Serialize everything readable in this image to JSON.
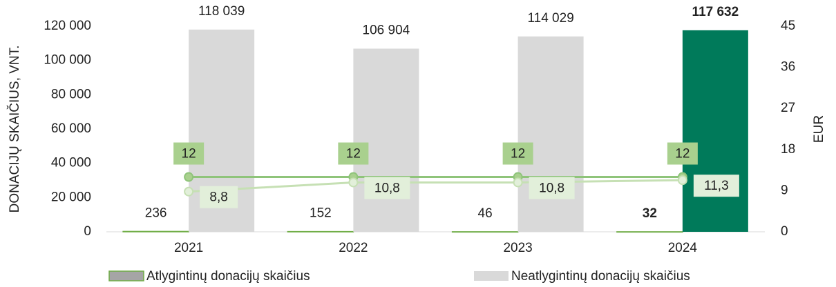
{
  "chart_data": {
    "type": "bar-line",
    "y_label": "DONACIJŲ SKAIČIUS, VNT.",
    "y2_label": "EUR",
    "categories": [
      "2021",
      "2022",
      "2023",
      "2024"
    ],
    "ylim": [
      0,
      120000
    ],
    "yticks": [
      0,
      {
        "value": 20000,
        "label": "20 000"
      },
      {
        "value": 40000,
        "label": "40 000"
      },
      {
        "value": 60000,
        "label": "60 000"
      },
      {
        "value": 80000,
        "label": "80 000"
      },
      {
        "value": 100000,
        "label": "100 000"
      },
      {
        "value": 120000,
        "label": "120 000"
      }
    ],
    "y2lim": [
      0,
      45
    ],
    "y2ticks": [
      0,
      9,
      18,
      27,
      36,
      45
    ],
    "series": [
      {
        "name": "Atlygintinų donacijų skaičius",
        "kind": "bar",
        "color": "#a5a5a5",
        "edge_color": "#70ad47",
        "values": [
          236,
          152,
          46,
          32
        ],
        "bold_labels": [
          false,
          false,
          false,
          true
        ]
      },
      {
        "name": "Neatlygintinų donacijų skaičius",
        "kind": "bar",
        "color": "#d9d9d9",
        "colors": [
          "#d9d9d9",
          "#d9d9d9",
          "#d9d9d9",
          "#007a5a"
        ],
        "values": [
          118039,
          106904,
          114029,
          117632
        ],
        "value_labels": [
          "118 039",
          "106 904",
          "114 029",
          "117 632"
        ],
        "bold_labels": [
          false,
          false,
          false,
          true
        ]
      },
      {
        "kind": "line",
        "axis": "y2",
        "color": "#8fc47a",
        "label_fill": "#a9d08e",
        "label_side": "above",
        "values": [
          12,
          12,
          12,
          12
        ]
      },
      {
        "kind": "line",
        "axis": "y2",
        "color": "#c6e0b4",
        "label_fill": "#e2efda",
        "label_side": "right",
        "values": [
          8.8,
          10.8,
          10.8,
          11.3
        ],
        "value_labels": [
          "8,8",
          "10,8",
          "10,8",
          "11,3"
        ]
      }
    ]
  }
}
